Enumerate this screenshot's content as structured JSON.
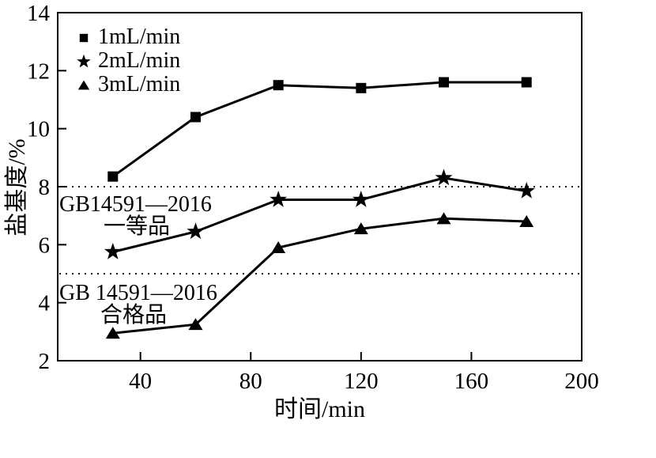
{
  "chart_data": {
    "type": "line",
    "title": "",
    "xlabel": "时间/min",
    "ylabel": "盐基度/%",
    "xlim": [
      10,
      200
    ],
    "ylim": [
      2,
      14
    ],
    "xticks": [
      "40",
      "80",
      "120",
      "160",
      "200"
    ],
    "xtick_values": [
      40,
      80,
      120,
      160,
      200
    ],
    "yticks": [
      "2",
      "4",
      "6",
      "8",
      "10",
      "12",
      "14"
    ],
    "ytick_values": [
      2,
      4,
      6,
      8,
      10,
      12,
      14
    ],
    "grid": false,
    "legend_position": "top-left-inside",
    "line_color": "#000000",
    "background": "#ffffff",
    "x": [
      30,
      60,
      90,
      120,
      150,
      180
    ],
    "series": [
      {
        "name": "1mL/min",
        "marker": "square",
        "values": [
          8.35,
          10.4,
          11.5,
          11.4,
          11.6,
          11.6
        ]
      },
      {
        "name": "2mL/min",
        "marker": "star",
        "values": [
          5.75,
          6.45,
          7.55,
          7.55,
          8.3,
          7.85
        ]
      },
      {
        "name": "3mL/min",
        "marker": "triangle",
        "values": [
          2.95,
          3.25,
          5.9,
          6.55,
          6.9,
          6.8
        ]
      }
    ],
    "reference_lines": [
      {
        "y": 8,
        "style": "dotted",
        "label_line1": "GB14591—2016",
        "label_line2": "一等品"
      },
      {
        "y": 5,
        "style": "dotted",
        "label_line1": "GB 14591—2016",
        "label_line2": "合格品"
      }
    ]
  }
}
